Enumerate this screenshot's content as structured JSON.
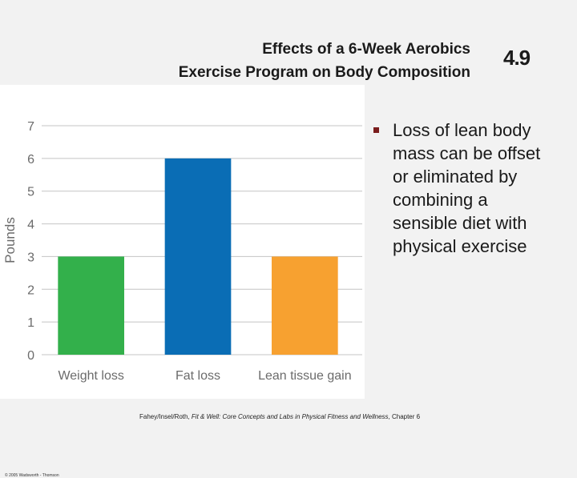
{
  "slide": {
    "title_line1": "Effects of a 6-Week Aerobics",
    "title_line2": "Exercise Program on Body Composition",
    "number": "4.9",
    "bullet_text": "Loss of lean body mass can be offset or eliminated by combining a sensible diet with physical exercise",
    "citation_authors": "Fahey/Insel/Roth, ",
    "citation_book": "Fit & Well: Core Concepts and Labs in Physical Fitness and Wellness",
    "citation_chapter": ", Chapter 6",
    "copyright": "© 2005 Wadsworth - Thomson",
    "bullet_color": "#7a1c1c"
  },
  "chart_data": {
    "type": "bar",
    "title": "",
    "xlabel": "",
    "ylabel": "Pounds",
    "categories": [
      "Weight loss",
      "Fat loss",
      "Lean tissue gain"
    ],
    "values": [
      3,
      6,
      3
    ],
    "colors": [
      "#33b04b",
      "#0a6db5",
      "#f7a130"
    ],
    "ylim": [
      0,
      7
    ],
    "yticks": [
      0,
      1,
      2,
      3,
      4,
      5,
      6,
      7
    ],
    "grid": true
  }
}
